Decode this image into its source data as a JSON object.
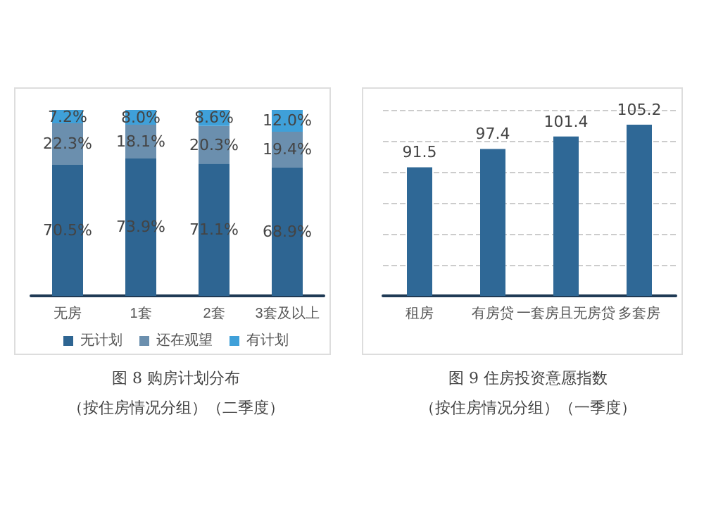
{
  "chart_data": [
    {
      "type": "bar",
      "stacked": true,
      "title": "图 8 购房计划分布",
      "subtitle": "（按住房情况分组）（二季度）",
      "categories": [
        "无房",
        "1套",
        "2套",
        "3套及以上"
      ],
      "ylim": [
        0,
        100
      ],
      "tick_labels": "x",
      "legend": "bottom",
      "grid": false,
      "series": [
        {
          "name": "无计划",
          "color": "#2e6592",
          "values": [
            70.5,
            73.9,
            71.1,
            68.9
          ],
          "value_labels": [
            "70.5%",
            "73.9%",
            "71.1%",
            "68.9%"
          ]
        },
        {
          "name": "还在观望",
          "color": "#6b8fae",
          "values": [
            22.3,
            18.1,
            20.3,
            19.4
          ],
          "value_labels": [
            "22.3%",
            "18.1%",
            "20.3%",
            "19.4%"
          ]
        },
        {
          "name": "有计划",
          "color": "#3fa0d9",
          "values": [
            7.2,
            8.0,
            8.6,
            12.0
          ],
          "value_labels": [
            "7.2%",
            "8.0%",
            "8.6%",
            "12.0%"
          ]
        }
      ]
    },
    {
      "type": "bar",
      "title": "图 9 住房投资意愿指数",
      "subtitle": "（按住房情况分组）（一季度）",
      "categories": [
        "租房",
        "有房贷",
        "一套房且无房贷",
        "多套房"
      ],
      "ylim": [
        50,
        110
      ],
      "yticks": [
        {
          "value": 50,
          "label": null
        },
        {
          "value": 60,
          "label": null
        },
        {
          "value": 70,
          "label": null
        },
        {
          "value": 80,
          "label": null
        },
        {
          "value": 90,
          "label": null
        },
        {
          "value": 100,
          "label": null
        },
        {
          "value": 110,
          "label": null
        }
      ],
      "tick_labels": "x",
      "grid": "y",
      "legend": false,
      "data_labels": true,
      "series": [
        {
          "color": "#2f6896",
          "values": [
            91.5,
            97.4,
            101.4,
            105.2
          ]
        }
      ]
    }
  ]
}
